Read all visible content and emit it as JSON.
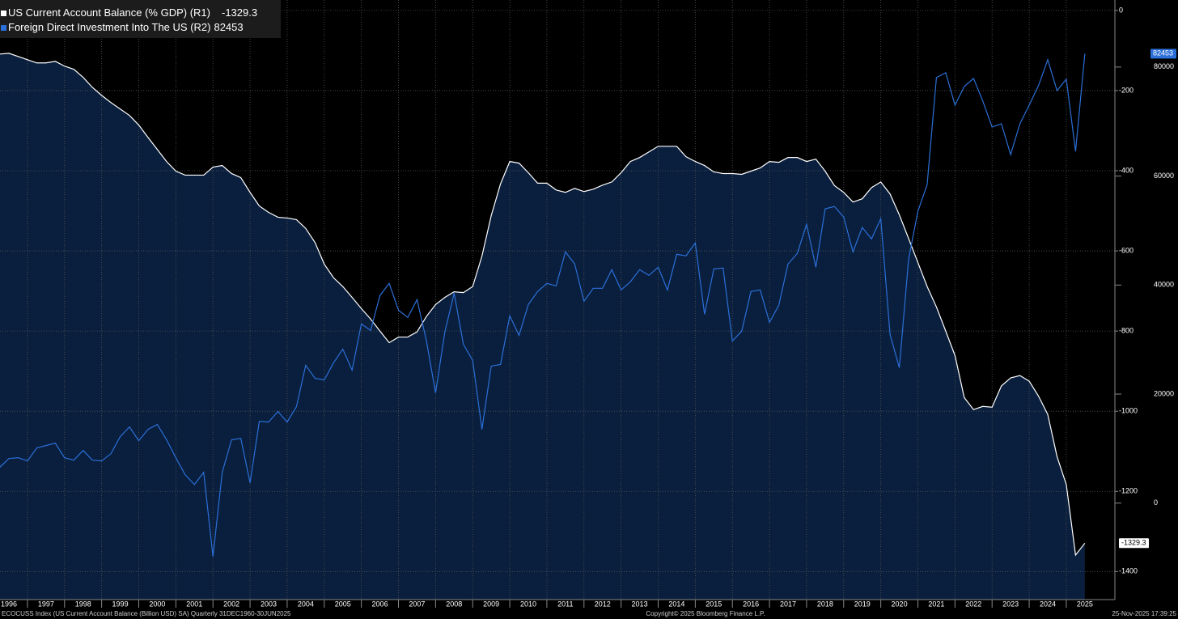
{
  "chart_data": {
    "type": "line",
    "x": [
      1996.25,
      1996.5,
      1996.75,
      1997,
      1997.25,
      1997.5,
      1997.75,
      1998,
      1998.25,
      1998.5,
      1998.75,
      1999,
      1999.25,
      1999.5,
      1999.75,
      2000,
      2000.25,
      2000.5,
      2000.75,
      2001,
      2001.25,
      2001.5,
      2001.75,
      2002,
      2002.25,
      2002.5,
      2002.75,
      2003,
      2003.25,
      2003.5,
      2003.75,
      2004,
      2004.25,
      2004.5,
      2004.75,
      2005,
      2005.25,
      2005.5,
      2005.75,
      2006,
      2006.25,
      2006.5,
      2006.75,
      2007,
      2007.25,
      2007.5,
      2007.75,
      2008,
      2008.25,
      2008.5,
      2008.75,
      2009,
      2009.25,
      2009.5,
      2009.75,
      2010,
      2010.25,
      2010.5,
      2010.75,
      2011,
      2011.25,
      2011.5,
      2011.75,
      2012,
      2012.25,
      2012.5,
      2012.75,
      2013,
      2013.25,
      2013.5,
      2013.75,
      2014,
      2014.25,
      2014.5,
      2014.75,
      2015,
      2015.25,
      2015.5,
      2015.75,
      2016,
      2016.25,
      2016.5,
      2016.75,
      2017,
      2017.25,
      2017.5,
      2017.75,
      2018,
      2018.25,
      2018.5,
      2018.75,
      2019,
      2019.25,
      2019.5,
      2019.75,
      2020,
      2020.25,
      2020.5,
      2020.75,
      2021,
      2021.25,
      2021.5,
      2021.75,
      2022,
      2022.25,
      2022.5,
      2022.75,
      2023,
      2023.25,
      2023.5,
      2023.75,
      2024,
      2024.25,
      2024.5,
      2024.75,
      2025,
      2025.25,
      2025.5
    ],
    "series": [
      {
        "name": "US Current Account Balance (% GDP) (R1)",
        "color": "#ffffff",
        "fill": "#0a1f3d",
        "axis": "y",
        "values": [
          -109,
          -107,
          -115,
          -123,
          -131,
          -131,
          -127,
          -139,
          -147,
          -167,
          -192,
          -212,
          -230,
          -246,
          -262,
          -286,
          -317,
          -347,
          -377,
          -401,
          -411,
          -411,
          -411,
          -391,
          -387,
          -407,
          -417,
          -454,
          -488,
          -504,
          -516,
          -518,
          -522,
          -544,
          -579,
          -633,
          -667,
          -689,
          -716,
          -744,
          -770,
          -800,
          -829,
          -815,
          -815,
          -802,
          -764,
          -734,
          -716,
          -702,
          -704,
          -689,
          -613,
          -512,
          -433,
          -377,
          -381,
          -405,
          -431,
          -431,
          -448,
          -454,
          -444,
          -452,
          -446,
          -436,
          -428,
          -405,
          -377,
          -367,
          -353,
          -339,
          -339,
          -339,
          -365,
          -377,
          -387,
          -403,
          -407,
          -407,
          -409,
          -401,
          -393,
          -377,
          -379,
          -367,
          -367,
          -377,
          -371,
          -401,
          -437,
          -454,
          -478,
          -470,
          -442,
          -428,
          -458,
          -510,
          -569,
          -629,
          -689,
          -740,
          -800,
          -861,
          -966,
          -996,
          -988,
          -990,
          -937,
          -917,
          -911,
          -925,
          -962,
          -1008,
          -1113,
          -1183,
          -1359,
          -1329.3
        ]
      },
      {
        "name": "Foreign Direct Investment Into The US (R2)",
        "color": "#2b6fd8",
        "axis": "y2",
        "values": [
          6543,
          8179,
          8327,
          7732,
          10112,
          10558,
          11004,
          8327,
          7881,
          9666,
          7881,
          7732,
          9071,
          12193,
          13978,
          11450,
          13532,
          14424,
          11599,
          8327,
          5205,
          3420,
          5651,
          -9814,
          5651,
          11599,
          11896,
          3718,
          15019,
          14870,
          16803,
          14870,
          17695,
          25279,
          22900,
          22602,
          25725,
          28253,
          24387,
          32863,
          31673,
          38067,
          40298,
          35391,
          34053,
          37324,
          29889,
          20223,
          31376,
          38513,
          29145,
          26171,
          13532,
          25131,
          25428,
          34350,
          30781,
          36432,
          38811,
          40298,
          39852,
          46097,
          43866,
          37027,
          39406,
          39406,
          42826,
          39109,
          40596,
          42826,
          41785,
          43271,
          39109,
          45651,
          45353,
          47733,
          34647,
          42974,
          43123,
          29740,
          31524,
          38811,
          39109,
          33160,
          36283,
          43866,
          45800,
          51153,
          43271,
          53978,
          54424,
          52491,
          46097,
          50558,
          48476,
          52193,
          30930,
          24833,
          44759,
          53532,
          58439,
          78068,
          78960,
          73012,
          76432,
          77919,
          73755,
          68997,
          69592,
          63941,
          69592,
          73012,
          76581,
          81339,
          75689,
          77770,
          64536,
          82453
        ]
      }
    ],
    "xlim": [
      1996.26,
      2026.31
    ],
    "xticks": [
      1996,
      1997,
      1998,
      1999,
      2000,
      2001,
      2002,
      2003,
      2004,
      2005,
      2006,
      2007,
      2008,
      2009,
      2010,
      2011,
      2012,
      2013,
      2014,
      2015,
      2016,
      2017,
      2018,
      2019,
      2020,
      2021,
      2022,
      2023,
      2024,
      2025
    ],
    "ylim": [
      -1470,
      26
    ],
    "yticks": [
      0,
      -200,
      -400,
      -600,
      -800,
      -1000,
      -1200,
      -1400
    ],
    "y2lim": [
      -17700,
      92300
    ],
    "y2ticks": [
      0,
      20000,
      40000,
      60000,
      80000
    ],
    "grid": true,
    "legend": "top-left",
    "footer": {
      "left": "ECOCUSS Index (US Current Account Balance (Billion USD) SA) Quarterly 31DEC1960-30JUN2025",
      "center": "Copyright© 2025 Bloomberg Finance L.P.",
      "right": "25-Nov-2025 17:39:25"
    }
  }
}
